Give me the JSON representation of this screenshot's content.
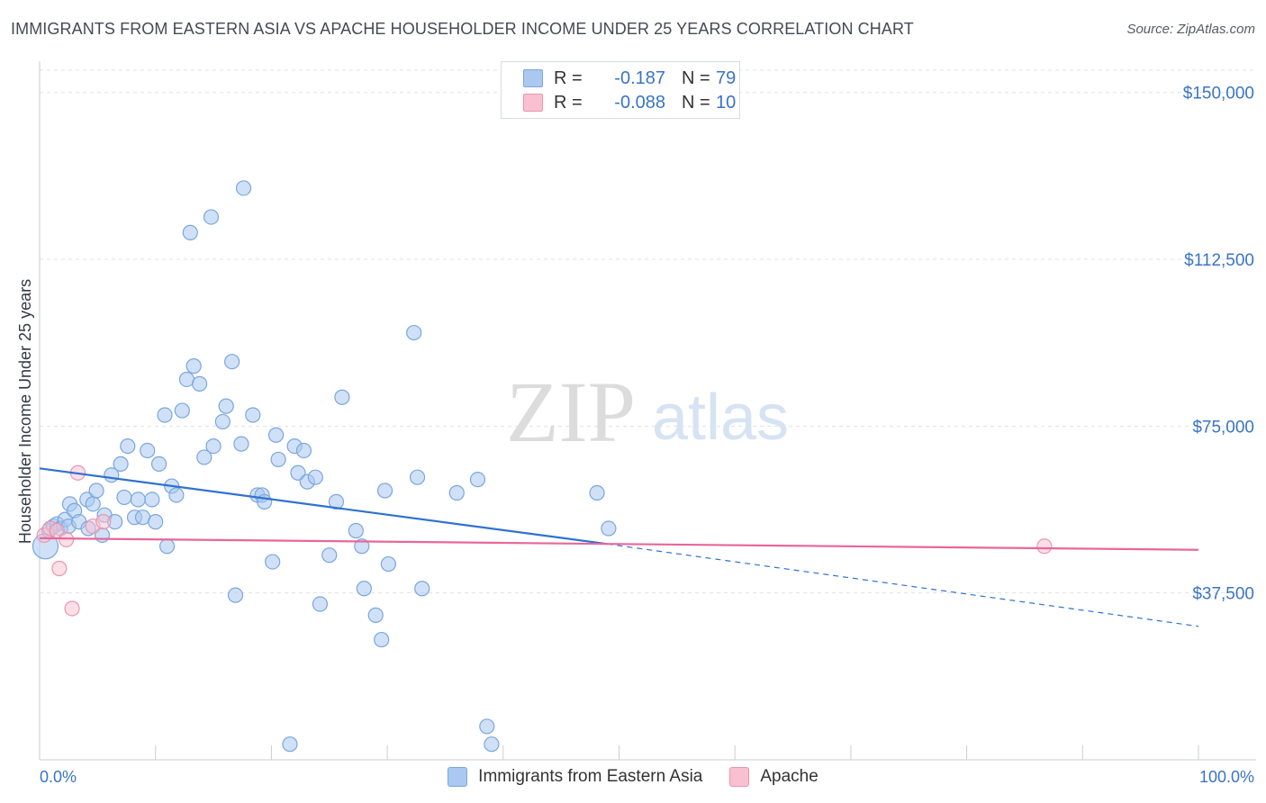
{
  "header": {
    "title": "IMMIGRANTS FROM EASTERN ASIA VS APACHE HOUSEHOLDER INCOME UNDER 25 YEARS CORRELATION CHART",
    "source": "Source: ZipAtlas.com"
  },
  "watermark": {
    "zip": "ZIP",
    "atlas": "atlas"
  },
  "legend": {
    "rows": [
      {
        "r_label": "R =",
        "r_value": "-0.187",
        "n_label": "N =",
        "n_value": "79",
        "color": "#aac8f0",
        "border": "#7aa6de"
      },
      {
        "r_label": "R =",
        "r_value": "-0.088",
        "n_label": "N =",
        "n_value": "10",
        "color": "#f8c0d0",
        "border": "#e896b0"
      }
    ]
  },
  "bottom_legend": [
    {
      "label": "Immigrants from Eastern Asia",
      "color": "#aac8f0",
      "border": "#7aa6de"
    },
    {
      "label": "Apache",
      "color": "#f8c0d0",
      "border": "#e896b0"
    }
  ],
  "chart_data": {
    "type": "scatter",
    "title": "IMMIGRANTS FROM EASTERN ASIA VS APACHE HOUSEHOLDER INCOME UNDER 25 YEARS CORRELATION CHART",
    "xlabel": "",
    "ylabel": "Householder Income Under 25 years",
    "xlim": [
      0,
      100
    ],
    "ylim": [
      0,
      155000
    ],
    "x_ticks": [
      {
        "value": 0,
        "label": "0.0%"
      },
      {
        "value": 100,
        "label": "100.0%"
      }
    ],
    "y_ticks": [
      {
        "value": 37500,
        "label": "$37,500"
      },
      {
        "value": 75000,
        "label": "$75,000"
      },
      {
        "value": 112500,
        "label": "$112,500"
      },
      {
        "value": 150000,
        "label": "$150,000"
      }
    ],
    "grid": true,
    "legend_position": "top-center",
    "series": [
      {
        "name": "Immigrants from Eastern Asia",
        "color": "#7aa6de",
        "fill": "#aac8f0",
        "trend": {
          "x0": 0,
          "y0": 65500,
          "x1": 49,
          "y1": 48500,
          "dash_to_x": 100,
          "dash_to_y": 30000,
          "color": "#2f72cf"
        },
        "points": [
          {
            "x": 0.5,
            "y": 48000,
            "big": true
          },
          {
            "x": 0.8,
            "y": 51500
          },
          {
            "x": 1.2,
            "y": 52500
          },
          {
            "x": 1.5,
            "y": 53000
          },
          {
            "x": 1.8,
            "y": 52000
          },
          {
            "x": 2.2,
            "y": 54000
          },
          {
            "x": 2.5,
            "y": 52500
          },
          {
            "x": 2.6,
            "y": 57500
          },
          {
            "x": 3.0,
            "y": 56000
          },
          {
            "x": 3.4,
            "y": 53500
          },
          {
            "x": 4.2,
            "y": 52000
          },
          {
            "x": 4.1,
            "y": 58500
          },
          {
            "x": 4.6,
            "y": 57500
          },
          {
            "x": 4.9,
            "y": 60500
          },
          {
            "x": 5.4,
            "y": 50500
          },
          {
            "x": 5.6,
            "y": 55000
          },
          {
            "x": 6.2,
            "y": 64000
          },
          {
            "x": 6.5,
            "y": 53500
          },
          {
            "x": 7.0,
            "y": 66500
          },
          {
            "x": 7.3,
            "y": 59000
          },
          {
            "x": 7.6,
            "y": 70500
          },
          {
            "x": 8.2,
            "y": 54500
          },
          {
            "x": 8.5,
            "y": 58500
          },
          {
            "x": 8.9,
            "y": 54500
          },
          {
            "x": 9.3,
            "y": 69500
          },
          {
            "x": 9.7,
            "y": 58500
          },
          {
            "x": 10.0,
            "y": 53500
          },
          {
            "x": 10.3,
            "y": 66500
          },
          {
            "x": 10.8,
            "y": 77500
          },
          {
            "x": 11.0,
            "y": 48000
          },
          {
            "x": 11.4,
            "y": 61500
          },
          {
            "x": 11.8,
            "y": 59500
          },
          {
            "x": 12.3,
            "y": 78500
          },
          {
            "x": 12.7,
            "y": 85500
          },
          {
            "x": 13.0,
            "y": 118500
          },
          {
            "x": 13.3,
            "y": 88500
          },
          {
            "x": 13.8,
            "y": 84500
          },
          {
            "x": 14.2,
            "y": 68000
          },
          {
            "x": 14.8,
            "y": 122000
          },
          {
            "x": 15.0,
            "y": 70500
          },
          {
            "x": 15.8,
            "y": 76000
          },
          {
            "x": 16.1,
            "y": 79500
          },
          {
            "x": 16.6,
            "y": 89500
          },
          {
            "x": 16.9,
            "y": 37000
          },
          {
            "x": 17.4,
            "y": 71000
          },
          {
            "x": 18.4,
            "y": 77500
          },
          {
            "x": 18.8,
            "y": 59500
          },
          {
            "x": 19.2,
            "y": 59500
          },
          {
            "x": 19.4,
            "y": 58000
          },
          {
            "x": 20.1,
            "y": 44500
          },
          {
            "x": 20.4,
            "y": 73000
          },
          {
            "x": 20.6,
            "y": 67500
          },
          {
            "x": 22.0,
            "y": 70500
          },
          {
            "x": 22.3,
            "y": 64500
          },
          {
            "x": 22.8,
            "y": 69500
          },
          {
            "x": 23.1,
            "y": 62500
          },
          {
            "x": 23.8,
            "y": 63500
          },
          {
            "x": 24.2,
            "y": 35000
          },
          {
            "x": 25.0,
            "y": 46000
          },
          {
            "x": 25.6,
            "y": 58000
          },
          {
            "x": 26.1,
            "y": 81500
          },
          {
            "x": 27.3,
            "y": 51500
          },
          {
            "x": 27.8,
            "y": 48000
          },
          {
            "x": 28.0,
            "y": 38500
          },
          {
            "x": 29.0,
            "y": 32500
          },
          {
            "x": 29.5,
            "y": 27000
          },
          {
            "x": 29.8,
            "y": 60500
          },
          {
            "x": 30.1,
            "y": 44000
          },
          {
            "x": 32.3,
            "y": 96000
          },
          {
            "x": 32.6,
            "y": 63500
          },
          {
            "x": 33.0,
            "y": 38500
          },
          {
            "x": 36.0,
            "y": 60000
          },
          {
            "x": 37.8,
            "y": 63000
          },
          {
            "x": 38.6,
            "y": 7500
          },
          {
            "x": 39.0,
            "y": 3500
          },
          {
            "x": 48.1,
            "y": 60000
          },
          {
            "x": 49.1,
            "y": 52000
          },
          {
            "x": 17.6,
            "y": 128500
          },
          {
            "x": 21.6,
            "y": 3500
          }
        ]
      },
      {
        "name": "Apache",
        "color": "#e896b0",
        "fill": "#f8c0d0",
        "trend": {
          "x0": 0,
          "y0": 49800,
          "x1": 100,
          "y1": 47200,
          "color": "#e8679a"
        },
        "points": [
          {
            "x": 0.4,
            "y": 50500
          },
          {
            "x": 0.9,
            "y": 52000
          },
          {
            "x": 1.5,
            "y": 51500
          },
          {
            "x": 1.7,
            "y": 43000
          },
          {
            "x": 2.3,
            "y": 49500
          },
          {
            "x": 2.8,
            "y": 34000
          },
          {
            "x": 3.3,
            "y": 64500
          },
          {
            "x": 4.6,
            "y": 52500
          },
          {
            "x": 5.5,
            "y": 53500
          },
          {
            "x": 86.7,
            "y": 48000
          }
        ]
      }
    ]
  }
}
